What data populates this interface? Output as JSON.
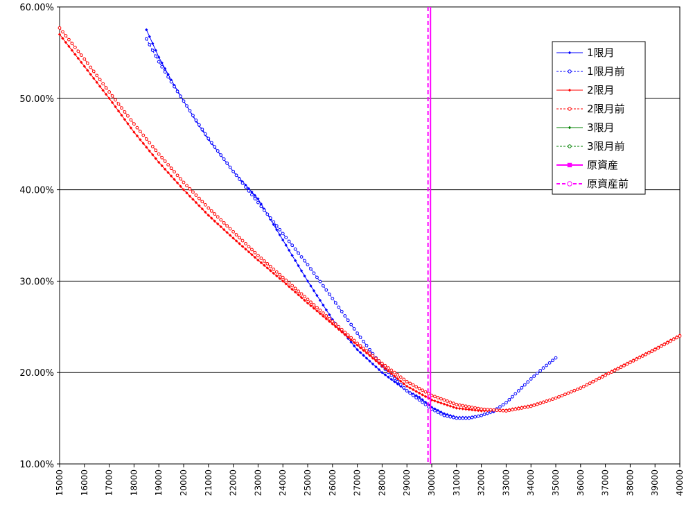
{
  "chart_data": {
    "type": "line",
    "title": "",
    "xlabel": "",
    "ylabel": "",
    "xlim": [
      15000,
      40000
    ],
    "ylim": [
      0.1,
      0.6
    ],
    "y_tick_format": "percent_2dp",
    "y_ticks": [
      "10.00%",
      "20.00%",
      "30.00%",
      "40.00%",
      "50.00%",
      "60.00%"
    ],
    "x_ticks": [
      "15000",
      "16000",
      "17000",
      "18000",
      "19000",
      "20000",
      "21000",
      "22000",
      "23000",
      "24000",
      "25000",
      "26000",
      "27000",
      "28000",
      "29000",
      "30000",
      "31000",
      "32000",
      "33000",
      "34000",
      "35000",
      "36000",
      "37000",
      "38000",
      "39000",
      "40000"
    ],
    "grid": "horizontal",
    "legend_position": "right",
    "series": [
      {
        "name": "1限月",
        "color": "#0000ff",
        "line_style": "solid",
        "marker": "filled-diamond",
        "x": [
          18500,
          19000,
          19500,
          20000,
          20500,
          21000,
          22000,
          23000,
          24000,
          25000,
          26000,
          27000,
          28000,
          29000,
          29500,
          30000,
          30500,
          31000,
          31500,
          32000,
          32500
        ],
        "y": [
          0.575,
          0.545,
          0.52,
          0.497,
          0.475,
          0.455,
          0.42,
          0.39,
          0.345,
          0.3,
          0.258,
          0.225,
          0.2,
          0.18,
          0.173,
          0.162,
          0.155,
          0.151,
          0.151,
          0.153,
          0.157
        ]
      },
      {
        "name": "1限月前",
        "color": "#0000ff",
        "line_style": "dashed",
        "marker": "open-circle",
        "x": [
          18500,
          19000,
          19500,
          20000,
          20500,
          21000,
          22000,
          23000,
          24000,
          25000,
          26000,
          27000,
          28000,
          29000,
          29500,
          30000,
          30500,
          31000,
          31500,
          32000,
          32500,
          33000,
          33500,
          34000,
          34500,
          35000
        ],
        "y": [
          0.565,
          0.54,
          0.518,
          0.497,
          0.476,
          0.456,
          0.42,
          0.386,
          0.352,
          0.318,
          0.281,
          0.243,
          0.207,
          0.18,
          0.17,
          0.16,
          0.153,
          0.15,
          0.15,
          0.153,
          0.158,
          0.167,
          0.18,
          0.193,
          0.205,
          0.216
        ]
      },
      {
        "name": "2限月",
        "color": "#ff0000",
        "line_style": "solid",
        "marker": "filled-diamond",
        "x": [
          15000,
          16000,
          17000,
          18000,
          19000,
          20000,
          21000,
          22000,
          23000,
          24000,
          25000,
          26000,
          27000,
          28000,
          29000,
          30000,
          31000,
          32000,
          33000,
          34000,
          35000,
          36000,
          37000,
          38000,
          39000,
          40000
        ],
        "y": [
          0.57,
          0.535,
          0.5,
          0.463,
          0.43,
          0.4,
          0.372,
          0.347,
          0.323,
          0.3,
          0.276,
          0.253,
          0.23,
          0.207,
          0.185,
          0.17,
          0.161,
          0.158,
          0.159,
          0.164,
          0.172,
          0.183,
          0.198,
          0.212,
          0.226,
          0.241
        ]
      },
      {
        "name": "2限月前",
        "color": "#ff0000",
        "line_style": "dashed",
        "marker": "open-circle",
        "x": [
          15000,
          16000,
          17000,
          18000,
          19000,
          20000,
          21000,
          22000,
          23000,
          24000,
          25000,
          26000,
          27000,
          28000,
          29000,
          30000,
          31000,
          32000,
          33000,
          34000,
          35000,
          36000,
          37000,
          38000,
          39000,
          40000
        ],
        "y": [
          0.577,
          0.543,
          0.507,
          0.472,
          0.439,
          0.408,
          0.38,
          0.354,
          0.328,
          0.304,
          0.28,
          0.256,
          0.232,
          0.21,
          0.19,
          0.175,
          0.165,
          0.16,
          0.158,
          0.163,
          0.172,
          0.183,
          0.197,
          0.211,
          0.225,
          0.24
        ]
      },
      {
        "name": "3限月",
        "color": "#008000",
        "line_style": "solid",
        "marker": "filled-diamond",
        "x": [],
        "y": []
      },
      {
        "name": "3限月前",
        "color": "#008000",
        "line_style": "dashed",
        "marker": "open-circle",
        "x": [],
        "y": []
      },
      {
        "name": "原資産",
        "color": "#ff00ff",
        "line_style": "solid",
        "marker": "filled-square",
        "vertical_x": 29950
      },
      {
        "name": "原資産前",
        "color": "#ff00ff",
        "line_style": "dashed",
        "marker": "open-circle",
        "vertical_x": 29850
      }
    ]
  }
}
